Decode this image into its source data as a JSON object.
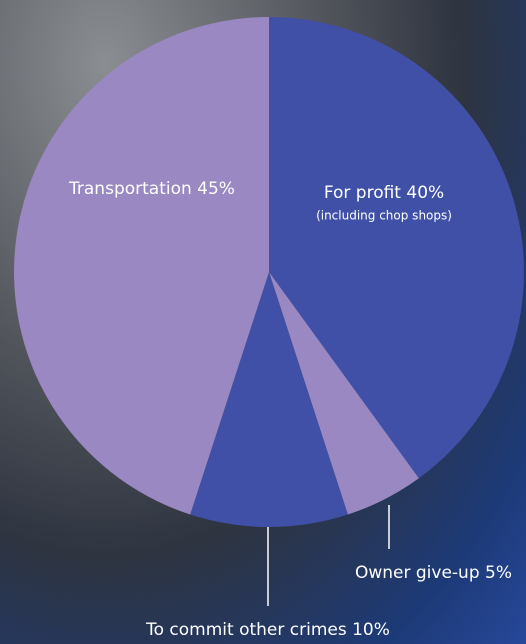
{
  "chart_data": {
    "type": "pie",
    "values": [
      40,
      5,
      10,
      45
    ],
    "value_labels": [
      "For profit 40%",
      "Owner give-up 5%",
      "To commit other crimes 10%",
      "Transportation 45%"
    ],
    "colors": [
      "#3f50a6",
      "#9a88c2",
      "#3f50a6",
      "#9a88c2"
    ],
    "annotation": "(including chop shops)"
  }
}
